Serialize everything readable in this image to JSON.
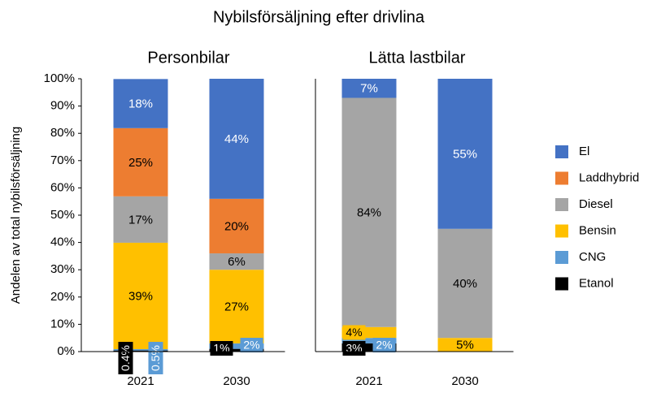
{
  "title": "Nybilsförsäljning efter drivlina",
  "y_label": "Andelen av total nybilsförsäljning",
  "legend": [
    {
      "name": "El",
      "color": "#4472c4"
    },
    {
      "name": "Laddhybrid",
      "color": "#ed7d31"
    },
    {
      "name": "Diesel",
      "color": "#a5a5a5"
    },
    {
      "name": "Bensin",
      "color": "#ffc000"
    },
    {
      "name": "CNG",
      "color": "#5b9bd5"
    },
    {
      "name": "Etanol",
      "color": "#000000"
    }
  ],
  "chart_data": [
    {
      "type": "stacked_bar",
      "title": "Personbilar",
      "categories": [
        "2021",
        "2030"
      ],
      "ylim": [
        0,
        100
      ],
      "yticks": [
        {
          "value": 0,
          "label": "0%"
        },
        {
          "value": 10,
          "label": "10%"
        },
        {
          "value": 20,
          "label": "20%"
        },
        {
          "value": 30,
          "label": "30%"
        },
        {
          "value": 40,
          "label": "40%"
        },
        {
          "value": 50,
          "label": "50%"
        },
        {
          "value": 60,
          "label": "60%"
        },
        {
          "value": 70,
          "label": "70%"
        },
        {
          "value": 80,
          "label": "80%"
        },
        {
          "value": 90,
          "label": "90%"
        },
        {
          "value": 100,
          "label": "100%"
        }
      ],
      "series": [
        {
          "values": [
            18,
            44
          ],
          "value_labels": [
            "18%",
            "44%"
          ]
        },
        {
          "values": [
            25,
            20
          ],
          "value_labels": [
            "25%",
            "20%"
          ]
        },
        {
          "values": [
            17,
            6
          ],
          "value_labels": [
            "17%",
            "6%"
          ]
        },
        {
          "values": [
            39,
            27
          ],
          "value_labels": [
            "39%",
            "27%"
          ]
        },
        {
          "values": [
            0.5,
            2
          ],
          "value_labels": [
            "0.5%",
            "2%"
          ]
        },
        {
          "values": [
            0.4,
            1
          ],
          "value_labels": [
            "0.4%",
            "1%"
          ]
        }
      ]
    },
    {
      "type": "stacked_bar",
      "title": "Lätta lastbilar",
      "categories": [
        "2021",
        "2030"
      ],
      "ylim": [
        0,
        100
      ],
      "series": [
        {
          "values": [
            7,
            55
          ],
          "value_labels": [
            "7%",
            "55%"
          ]
        },
        {
          "values": [
            null,
            null
          ],
          "value_labels": [
            null,
            null
          ]
        },
        {
          "values": [
            84,
            40
          ],
          "value_labels": [
            "84%",
            "40%"
          ]
        },
        {
          "values": [
            4,
            5
          ],
          "value_labels": [
            "4%",
            "5%"
          ]
        },
        {
          "values": [
            2,
            null
          ],
          "value_labels": [
            "2%",
            null
          ]
        },
        {
          "values": [
            3,
            null
          ],
          "value_labels": [
            "3%",
            null
          ]
        }
      ]
    }
  ]
}
